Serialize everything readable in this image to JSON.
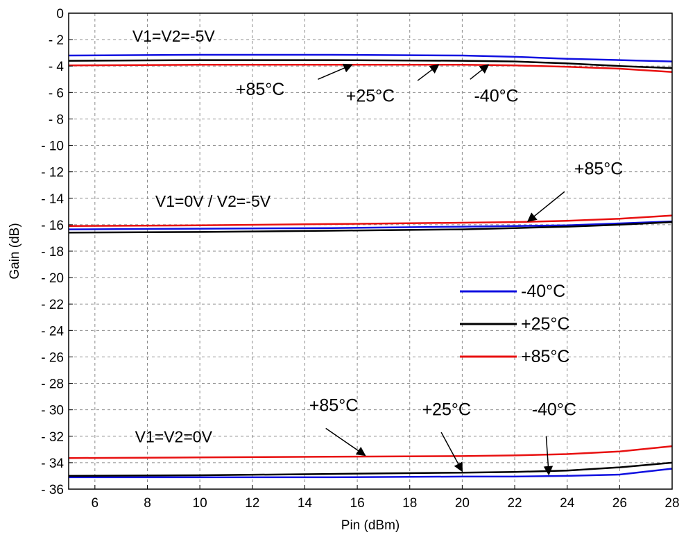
{
  "chart_data": {
    "type": "line",
    "xlabel": "Pin (dBm)",
    "ylabel": "Gain (dB)",
    "xlim": [
      5,
      28
    ],
    "ylim": [
      -36,
      0
    ],
    "xticks": [
      "6",
      "8",
      "10",
      "12",
      "14",
      "16",
      "18",
      "20",
      "22",
      "24",
      "26",
      "28"
    ],
    "yticks": [
      "0",
      "- 2",
      "- 4",
      "- 6",
      "- 8",
      "- 10",
      "- 12",
      "- 14",
      "- 16",
      "- 18",
      "- 20",
      "- 22",
      "- 24",
      "- 26",
      "- 28",
      "- 30",
      "- 32",
      "- 34",
      "- 36"
    ],
    "grid": true,
    "colors": {
      "-40°C": "#1010e0",
      "+25°C": "#000000",
      "+85°C": "#e81010"
    },
    "legend": {
      "placement": "middle-right",
      "entries": [
        "-40°C",
        "+25°C",
        "+85°C"
      ]
    },
    "groups": [
      {
        "condition": "V1=V2=-5V",
        "series": [
          {
            "name": "-40°C",
            "x": [
              5,
              10,
              15,
              20,
              22,
              24,
              26,
              28
            ],
            "y": [
              -3.2,
              -3.15,
              -3.15,
              -3.2,
              -3.3,
              -3.45,
              -3.55,
              -3.65
            ]
          },
          {
            "name": "+25°C",
            "x": [
              5,
              10,
              15,
              20,
              22,
              24,
              26,
              28
            ],
            "y": [
              -3.6,
              -3.55,
              -3.55,
              -3.6,
              -3.65,
              -3.8,
              -4.0,
              -4.15
            ]
          },
          {
            "name": "+85°C",
            "x": [
              5,
              10,
              15,
              20,
              22,
              24,
              26,
              28
            ],
            "y": [
              -3.95,
              -3.9,
              -3.9,
              -3.9,
              -3.95,
              -4.05,
              -4.2,
              -4.45
            ]
          }
        ]
      },
      {
        "condition": "V1=0V / V2=-5V",
        "series": [
          {
            "name": "-40°C",
            "x": [
              5,
              10,
              15,
              20,
              22,
              24,
              26,
              28
            ],
            "y": [
              -16.35,
              -16.3,
              -16.25,
              -16.15,
              -16.1,
              -16.05,
              -15.9,
              -15.75
            ]
          },
          {
            "name": "+25°C",
            "x": [
              5,
              10,
              15,
              20,
              22,
              24,
              26,
              28
            ],
            "y": [
              -16.6,
              -16.55,
              -16.45,
              -16.35,
              -16.25,
              -16.15,
              -16.0,
              -15.8
            ]
          },
          {
            "name": "+85°C",
            "x": [
              5,
              10,
              15,
              20,
              22,
              24,
              26,
              28
            ],
            "y": [
              -16.1,
              -16.05,
              -15.95,
              -15.85,
              -15.8,
              -15.7,
              -15.55,
              -15.3
            ]
          }
        ]
      },
      {
        "condition": "V1=V2=0V",
        "series": [
          {
            "name": "-40°C",
            "x": [
              5,
              10,
              15,
              20,
              22,
              24,
              26,
              28
            ],
            "y": [
              -35.1,
              -35.1,
              -35.1,
              -35.05,
              -35.05,
              -35.0,
              -34.9,
              -34.45
            ]
          },
          {
            "name": "+25°C",
            "x": [
              5,
              10,
              15,
              20,
              22,
              24,
              26,
              28
            ],
            "y": [
              -35.0,
              -34.95,
              -34.85,
              -34.75,
              -34.7,
              -34.6,
              -34.35,
              -34.0
            ]
          },
          {
            "name": "+85°C",
            "x": [
              5,
              10,
              15,
              20,
              22,
              24,
              26,
              28
            ],
            "y": [
              -33.65,
              -33.6,
              -33.55,
              -33.5,
              -33.45,
              -33.35,
              -33.15,
              -32.75
            ]
          }
        ]
      }
    ],
    "annotations": [
      {
        "text": "+85°C",
        "label_at": [
          12.3,
          -6.2
        ],
        "arrow_from": [
          14.5,
          -5.0
        ],
        "arrow_to": [
          15.8,
          -3.9
        ]
      },
      {
        "text": "+25°C",
        "label_at": [
          16.5,
          -6.7
        ],
        "arrow_from": [
          18.3,
          -5.1
        ],
        "arrow_to": [
          19.1,
          -3.9
        ]
      },
      {
        "text": "-40°C",
        "label_at": [
          21.3,
          -6.7
        ],
        "arrow_from": [
          20.3,
          -5.0
        ],
        "arrow_to": [
          21.0,
          -3.9
        ]
      },
      {
        "text": "+85°C",
        "label_at": [
          25.2,
          -12.2
        ],
        "arrow_from": [
          23.9,
          -13.5
        ],
        "arrow_to": [
          22.5,
          -15.75
        ]
      },
      {
        "text": "+85°C",
        "label_at": [
          15.1,
          -30.1
        ],
        "arrow_from": [
          14.8,
          -31.4
        ],
        "arrow_to": [
          16.3,
          -33.45
        ]
      },
      {
        "text": "+25°C",
        "label_at": [
          19.4,
          -30.4
        ],
        "arrow_from": [
          19.2,
          -31.7
        ],
        "arrow_to": [
          20.0,
          -34.65
        ]
      },
      {
        "text": "-40°C",
        "label_at": [
          23.5,
          -30.4
        ],
        "arrow_from": [
          23.2,
          -32.0
        ],
        "arrow_to": [
          23.3,
          -34.9
        ]
      }
    ],
    "condition_labels": [
      {
        "text": "V1=V2=-5V",
        "at": [
          9.0,
          -2.15
        ]
      },
      {
        "text": "V1=0V / V2=-5V",
        "at": [
          10.5,
          -14.65
        ]
      },
      {
        "text": "V1=V2=0V",
        "at": [
          9.0,
          -32.45
        ]
      }
    ]
  }
}
